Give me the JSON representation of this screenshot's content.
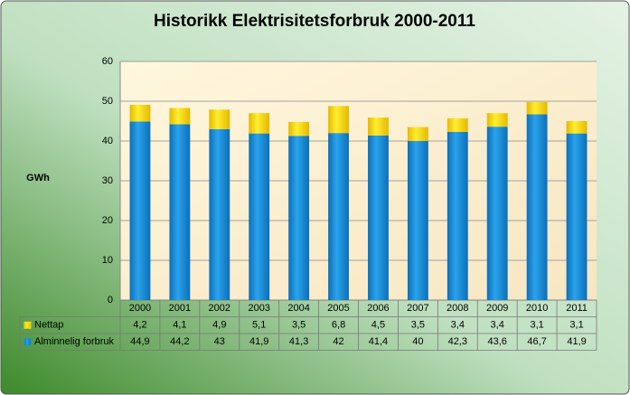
{
  "chart_data": {
    "type": "stacked_bar",
    "title": "Historikk Elektrisitetsforbruk 2000-2011",
    "y_label": "GWh",
    "categories": [
      "2000",
      "2001",
      "2002",
      "2003",
      "2004",
      "2005",
      "2006",
      "2007",
      "2008",
      "2009",
      "2010",
      "2011"
    ],
    "series": [
      {
        "name": "Nettap",
        "color": "#ffd700",
        "values": [
          4.2,
          4.1,
          4.9,
          5.1,
          3.5,
          6.8,
          4.5,
          3.5,
          3.4,
          3.4,
          3.1,
          3.1
        ],
        "value_labels": [
          "4,2",
          "4,1",
          "4,9",
          "5,1",
          "3,5",
          "6,8",
          "4,5",
          "3,5",
          "3,4",
          "3,4",
          "3,1",
          "3,1"
        ]
      },
      {
        "name": "Alminnelig forbruk",
        "color": "#1a8fd8",
        "values": [
          44.9,
          44.2,
          43,
          41.9,
          41.3,
          42,
          41.4,
          40,
          42.3,
          43.6,
          46.7,
          41.9
        ],
        "value_labels": [
          "44,9",
          "44,2",
          "43",
          "41,9",
          "41,3",
          "42",
          "41,4",
          "40",
          "42,3",
          "43,6",
          "46,7",
          "41,9"
        ]
      }
    ],
    "ylim": [
      0,
      60
    ],
    "yticks": [
      0,
      10,
      20,
      30,
      40,
      50,
      60
    ],
    "grid": true
  }
}
